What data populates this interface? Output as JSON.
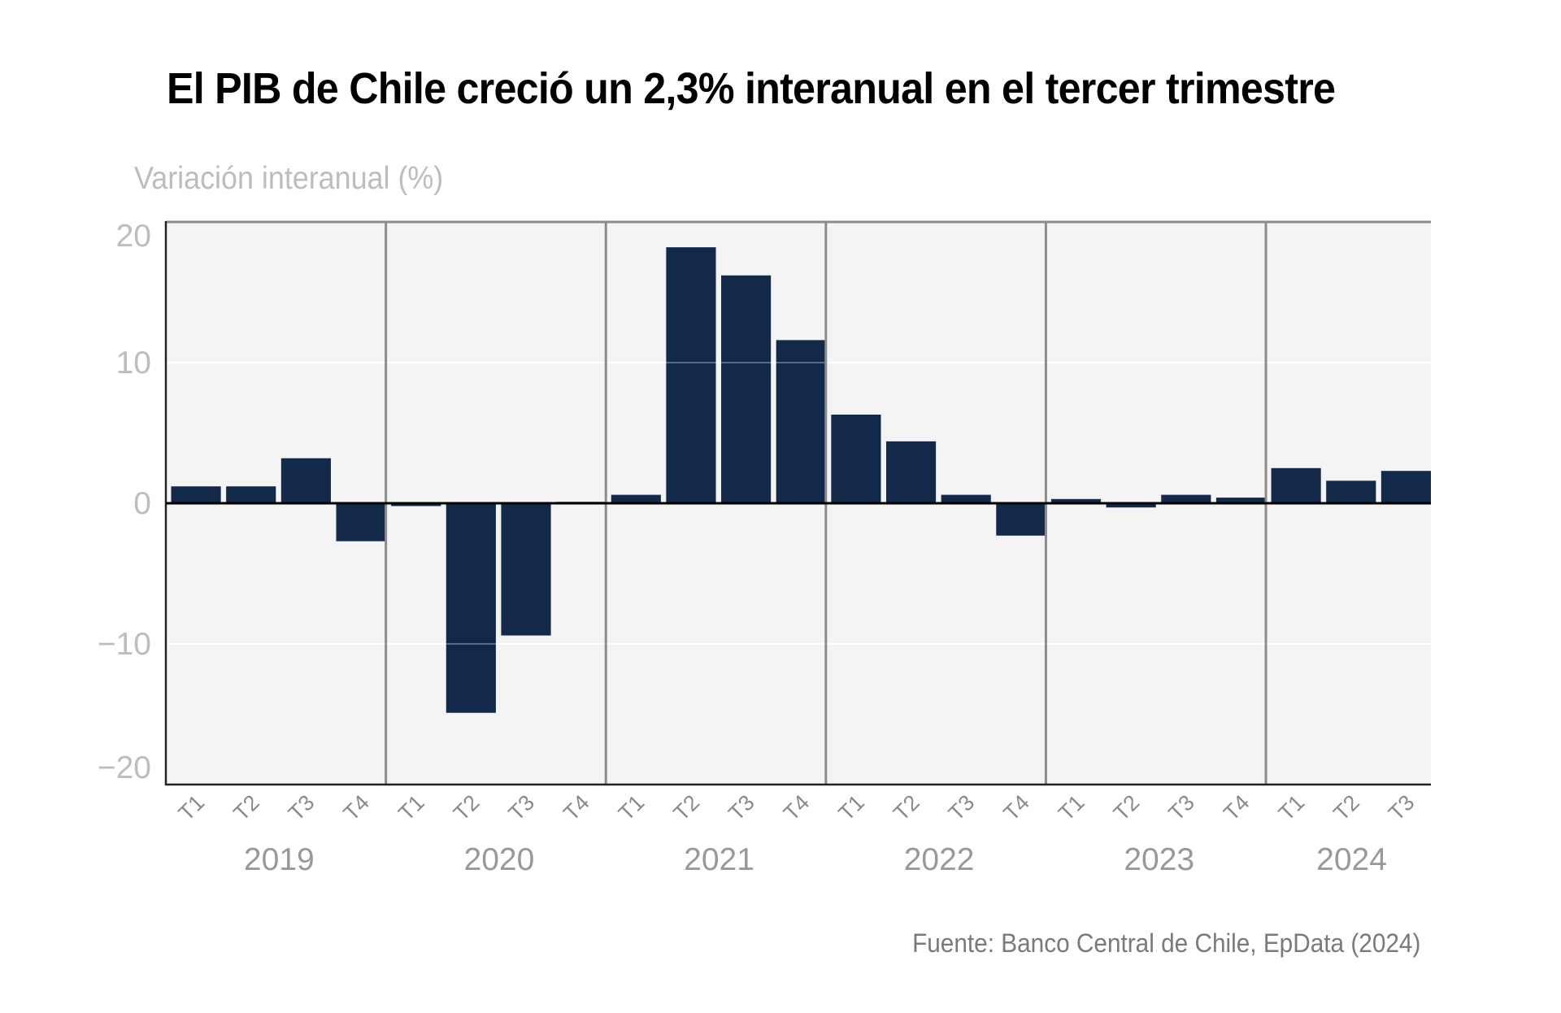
{
  "chart_data": {
    "type": "bar",
    "title": "El PIB de Chile creció un 2,3% interanual en el tercer trimestre",
    "ylabel": "Variación interanual (%)",
    "xlabel": "",
    "source": "Fuente: Banco Central de Chile, EpData (2024)",
    "ylim": [
      -20,
      20
    ],
    "yticks": [
      20,
      10,
      0,
      -10,
      -20
    ],
    "ytick_labels": [
      "20",
      "10",
      "0",
      "−10",
      "−20"
    ],
    "grid": true,
    "bar_color": "#12294a",
    "plot_background": "#f4f4f4",
    "groups": [
      {
        "year": "2019",
        "quarters": [
          "T1",
          "T2",
          "T3",
          "T4"
        ],
        "values": [
          1.2,
          1.2,
          3.2,
          -2.7
        ]
      },
      {
        "year": "2020",
        "quarters": [
          "T1",
          "T2",
          "T3",
          "T4"
        ],
        "values": [
          -0.2,
          -14.9,
          -9.4,
          0.1
        ]
      },
      {
        "year": "2021",
        "quarters": [
          "T1",
          "T2",
          "T3",
          "T4"
        ],
        "values": [
          0.6,
          18.2,
          16.2,
          11.6
        ]
      },
      {
        "year": "2022",
        "quarters": [
          "T1",
          "T2",
          "T3",
          "T4"
        ],
        "values": [
          6.3,
          4.4,
          0.6,
          -2.3
        ]
      },
      {
        "year": "2023",
        "quarters": [
          "T1",
          "T2",
          "T3",
          "T4"
        ],
        "values": [
          0.3,
          -0.3,
          0.6,
          0.4
        ]
      },
      {
        "year": "2024",
        "quarters": [
          "T1",
          "T2",
          "T3"
        ],
        "values": [
          2.5,
          1.6,
          2.3
        ]
      }
    ]
  }
}
